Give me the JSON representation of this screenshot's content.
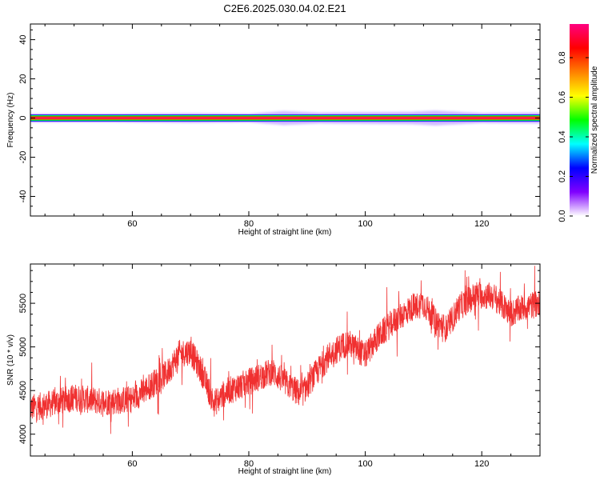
{
  "figure_title": "C2E6.2025.030.04.02.E21",
  "chart_data": [
    {
      "type": "heatmap",
      "title": "C2E6.2025.030.04.02.E21",
      "xlabel": "Height of straight line (km)",
      "ylabel": "Frequency (Hz)",
      "xlim": [
        42.5,
        130
      ],
      "ylim": [
        -50,
        48
      ],
      "xticks": [
        60,
        80,
        100,
        120
      ],
      "yticks": [
        40,
        20,
        0,
        -20,
        -40
      ],
      "grid": false,
      "colorbar": {
        "label": "Normalized spectral amplitude",
        "range": [
          0,
          0.97
        ],
        "ticks": [
          0.0,
          0.2,
          0.4,
          0.6,
          0.8
        ],
        "colormap": [
          "#ffffff",
          "#8000ff",
          "#0000ff",
          "#00ffff",
          "#00ff00",
          "#ffff00",
          "#ff8000",
          "#ff0000",
          "#ff0080"
        ]
      },
      "band": {
        "peak_frequency_hz": 0,
        "peak_amplitude": 0.95,
        "halfwidth_hz": 1.2,
        "spread_points": [
          {
            "x": 44,
            "halfwidth_hz": 1.6
          },
          {
            "x": 55,
            "halfwidth_hz": 1.5
          },
          {
            "x": 70,
            "halfwidth_hz": 1.9
          },
          {
            "x": 80,
            "halfwidth_hz": 1.6
          },
          {
            "x": 86,
            "halfwidth_hz": 3.0
          },
          {
            "x": 92,
            "halfwidth_hz": 2.2
          },
          {
            "x": 100,
            "halfwidth_hz": 2.4
          },
          {
            "x": 108,
            "halfwidth_hz": 2.6
          },
          {
            "x": 112,
            "halfwidth_hz": 3.2
          },
          {
            "x": 120,
            "halfwidth_hz": 2.0
          },
          {
            "x": 130,
            "halfwidth_hz": 2.2
          }
        ]
      }
    },
    {
      "type": "line",
      "xlabel": "Height of straight line (km)",
      "ylabel": "SNR (10 * v/v)",
      "xlim": [
        42.5,
        130
      ],
      "ylim": [
        3750,
        5950
      ],
      "xticks": [
        60,
        80,
        100,
        120
      ],
      "yticks": [
        4000,
        4500,
        5000,
        5500
      ],
      "grid": false,
      "series": [
        {
          "color": "#f03030",
          "noise_amplitude": 200,
          "trend": [
            {
              "x": 42.5,
              "y": 4300
            },
            {
              "x": 45,
              "y": 4330
            },
            {
              "x": 50,
              "y": 4420
            },
            {
              "x": 55,
              "y": 4370
            },
            {
              "x": 60,
              "y": 4400
            },
            {
              "x": 63,
              "y": 4550
            },
            {
              "x": 66,
              "y": 4700
            },
            {
              "x": 68,
              "y": 4920
            },
            {
              "x": 70,
              "y": 4950
            },
            {
              "x": 72,
              "y": 4700
            },
            {
              "x": 74,
              "y": 4350
            },
            {
              "x": 76,
              "y": 4480
            },
            {
              "x": 80,
              "y": 4600
            },
            {
              "x": 84,
              "y": 4720
            },
            {
              "x": 87,
              "y": 4550
            },
            {
              "x": 89,
              "y": 4450
            },
            {
              "x": 91,
              "y": 4650
            },
            {
              "x": 94,
              "y": 4920
            },
            {
              "x": 97,
              "y": 5050
            },
            {
              "x": 100,
              "y": 4900
            },
            {
              "x": 102,
              "y": 5100
            },
            {
              "x": 105,
              "y": 5300
            },
            {
              "x": 108,
              "y": 5450
            },
            {
              "x": 110,
              "y": 5500
            },
            {
              "x": 112,
              "y": 5300
            },
            {
              "x": 114,
              "y": 5200
            },
            {
              "x": 116,
              "y": 5450
            },
            {
              "x": 119,
              "y": 5600
            },
            {
              "x": 122,
              "y": 5580
            },
            {
              "x": 125,
              "y": 5380
            },
            {
              "x": 127,
              "y": 5450
            },
            {
              "x": 130,
              "y": 5500
            }
          ]
        }
      ]
    }
  ]
}
